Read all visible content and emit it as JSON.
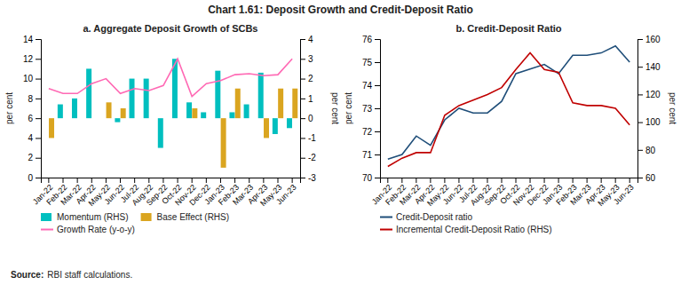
{
  "title": "Chart 1.61: Deposit Growth and Credit-Deposit Ratio",
  "annotations": [
    "Source:",
    "RBI staff calculations."
  ],
  "chart_data": [
    {
      "type": "bar",
      "title": "a. Aggregate Deposit Growth of SCBs",
      "ylabel": "per cent",
      "y2label": "per cent",
      "categories": [
        "Jan-22",
        "Feb-22",
        "Mar-22",
        "Apr-22",
        "May-22",
        "Jun-22",
        "Jul-22",
        "Aug-22",
        "Sep-22",
        "Oct-22",
        "Nov-22",
        "Dec-22",
        "Jan-23",
        "Feb-23",
        "Mar-23",
        "Apr-23",
        "May-23",
        "Jun-23"
      ],
      "series": [
        {
          "name": "Momentum (RHS)",
          "type": "bar",
          "axis": "y2",
          "color": "#00BFBF",
          "values": [
            0.0,
            0.7,
            1.0,
            2.5,
            0.0,
            -0.2,
            2.0,
            2.0,
            -1.5,
            3.0,
            0.8,
            0.3,
            2.4,
            0.3,
            0.7,
            2.3,
            -0.8,
            -0.5
          ]
        },
        {
          "name": "Base Effect (RHS)",
          "type": "bar",
          "axis": "y2",
          "color": "#DAA520",
          "values": [
            -1.0,
            0.0,
            0.0,
            0.0,
            0.8,
            0.5,
            0.0,
            0.0,
            0.0,
            0.0,
            0.5,
            0.0,
            -2.5,
            1.5,
            0.0,
            -1.0,
            1.5,
            1.5
          ]
        },
        {
          "name": "Growth Rate (y-o-y)",
          "type": "line",
          "color": "#FF69B4",
          "values": [
            9.0,
            8.5,
            8.5,
            9.5,
            10.0,
            8.5,
            9.0,
            8.8,
            9.3,
            12.0,
            8.2,
            9.5,
            9.8,
            10.4,
            10.5,
            10.3,
            10.4,
            12.0
          ]
        }
      ],
      "ylim": [
        0,
        14
      ],
      "yticks": [
        0,
        2,
        4,
        6,
        8,
        10,
        12,
        14
      ],
      "y2lim": [
        -3,
        4
      ],
      "y2ticks": [
        -3,
        -2,
        -1,
        0,
        1,
        2,
        3,
        4
      ],
      "grid": false,
      "legend": "bottom"
    },
    {
      "type": "line",
      "title": "b. Credit-Deposit Ratio",
      "ylabel": "per cent",
      "y2label": "per cent",
      "categories": [
        "Jan-22",
        "Feb-22",
        "Mar-22",
        "Apr-22",
        "May-22",
        "Jun-22",
        "Jul-22",
        "Aug-22",
        "Sep-22",
        "Oct-22",
        "Nov-22",
        "Dec-22",
        "Jan-23",
        "Feb-23",
        "Mar-23",
        "Apr-23",
        "May-23",
        "Jun-23"
      ],
      "series": [
        {
          "name": "Credit-Deposit ratio",
          "color": "#1F4E79",
          "values": [
            70.8,
            71.0,
            71.8,
            71.4,
            72.5,
            73.0,
            72.8,
            72.8,
            73.3,
            74.5,
            74.7,
            74.9,
            74.5,
            75.3,
            75.3,
            75.4,
            75.7,
            75.0
          ]
        },
        {
          "name": "Incremental Credit-Deposit Ratio (RHS)",
          "axis": "y2",
          "color": "#C00000",
          "values": [
            68,
            74,
            78,
            78,
            105,
            112,
            116,
            120,
            125,
            138,
            150,
            138,
            136,
            114,
            112,
            112,
            110,
            98
          ]
        }
      ],
      "ylim": [
        70,
        76
      ],
      "yticks": [
        70,
        71,
        72,
        73,
        74,
        75,
        76
      ],
      "y2lim": [
        60,
        160
      ],
      "y2ticks": [
        60,
        80,
        100,
        120,
        140,
        160
      ],
      "grid": false,
      "legend": "bottom"
    }
  ]
}
